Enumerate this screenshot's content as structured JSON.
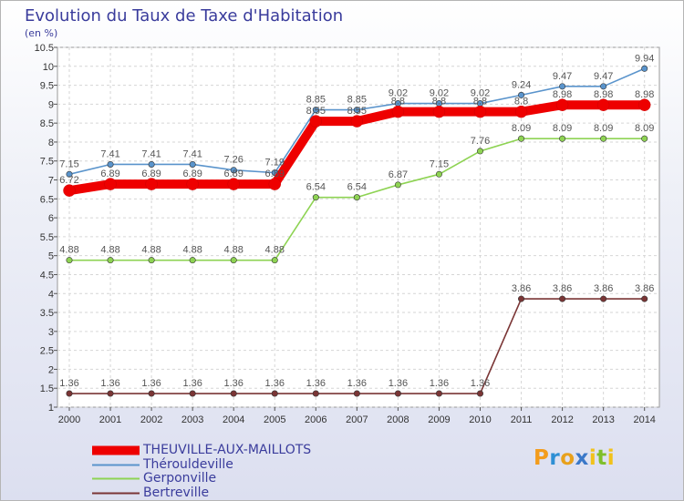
{
  "title": "Evolution du Taux de Taxe d'Habitation",
  "subtitle": "(en %)",
  "logo": {
    "text": "Proxiti"
  },
  "chart_data": {
    "type": "line",
    "title": "Evolution du Taux de Taxe d'Habitation",
    "ylabel": "(en %)",
    "xlabel": "",
    "ylim": [
      1,
      10.5
    ],
    "yticks": [
      "1",
      "1.5",
      "2",
      "2.5",
      "3",
      "3.5",
      "4",
      "4.5",
      "5",
      "5.5",
      "6",
      "6.5",
      "7",
      "7.5",
      "8",
      "8.5",
      "9",
      "9.5",
      "10",
      "10.5"
    ],
    "categories": [
      "2000",
      "2001",
      "2002",
      "2003",
      "2004",
      "2005",
      "2006",
      "2007",
      "2008",
      "2009",
      "2010",
      "2011",
      "2012",
      "2013",
      "2014"
    ],
    "grid": true,
    "legend": "bottom-left",
    "series": [
      {
        "name": "THEUVILLE-AUX-MAILLOTS",
        "color": "#ee0000",
        "values": [
          6.72,
          6.89,
          6.89,
          6.89,
          6.89,
          6.89,
          8.55,
          8.55,
          8.8,
          8.8,
          8.8,
          8.8,
          8.98,
          8.98,
          8.98
        ],
        "labels": [
          "6.72",
          "6.89",
          "6.89",
          "6.89",
          "6.89",
          "6.89",
          "8.55",
          "8.55",
          "8.8",
          "8.8",
          "8.8",
          "8.8",
          "8.98",
          "8.98",
          "8.98"
        ]
      },
      {
        "name": "Thérouldeville",
        "color": "#5a94cc",
        "values": [
          7.15,
          7.41,
          7.41,
          7.41,
          7.26,
          7.19,
          8.85,
          8.85,
          9.02,
          9.02,
          9.02,
          9.24,
          9.47,
          9.47,
          9.94
        ],
        "labels": [
          "7.15",
          "7.41",
          "7.41",
          "7.41",
          "7.26",
          "7.19",
          "8.85",
          "8.85",
          "9.02",
          "9.02",
          "9.02",
          "9.24",
          "9.47",
          "9.47",
          "9.94"
        ]
      },
      {
        "name": "Gerponville",
        "color": "#8ed353",
        "values": [
          4.88,
          4.88,
          4.88,
          4.88,
          4.88,
          4.88,
          6.54,
          6.54,
          6.87,
          7.15,
          7.76,
          8.09,
          8.09,
          8.09,
          8.09
        ],
        "labels": [
          "4.88",
          "4.88",
          "4.88",
          "4.88",
          "4.88",
          "4.88",
          "6.54",
          "6.54",
          "6.87",
          "7.15",
          "7.76",
          "8.09",
          "8.09",
          "8.09",
          "8.09"
        ]
      },
      {
        "name": "Bertreville",
        "color": "#7a3535",
        "values": [
          1.36,
          1.36,
          1.36,
          1.36,
          1.36,
          1.36,
          1.36,
          1.36,
          1.36,
          1.36,
          1.36,
          3.86,
          3.86,
          3.86,
          3.86
        ],
        "labels": [
          "1.36",
          "1.36",
          "1.36",
          "1.36",
          "1.36",
          "1.36",
          "1.36",
          "1.36",
          "1.36",
          "1.36",
          "1.36",
          "3.86",
          "3.86",
          "3.86",
          "3.86"
        ]
      }
    ]
  }
}
